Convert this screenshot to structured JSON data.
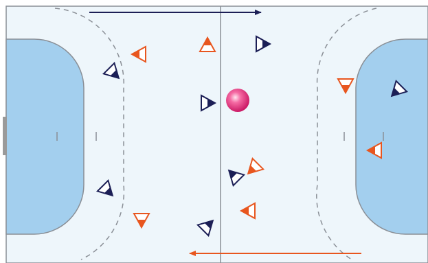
{
  "colors": {
    "court_background": "#eef6fb",
    "goal_area": "#a3cfee",
    "court_lines": "#8a8f96",
    "team_navy": "#1c1f56",
    "team_orange": "#e8561f",
    "ball": "#e6317a",
    "attack_arrow_navy": "#1c1f56",
    "attack_arrow_orange": "#e8561f"
  },
  "icons": {
    "ball": "handball-ball-icon",
    "player": "triangle-player-icon"
  },
  "players": [
    {
      "team": "navy",
      "heading": "right"
    },
    {
      "team": "navy",
      "heading": "down-right"
    },
    {
      "team": "navy",
      "heading": "right"
    },
    {
      "team": "navy",
      "heading": "down-left"
    },
    {
      "team": "navy",
      "heading": "up-left"
    },
    {
      "team": "navy",
      "heading": "down-right"
    },
    {
      "team": "navy",
      "heading": "up-right"
    },
    {
      "team": "orange",
      "heading": "left"
    },
    {
      "team": "orange",
      "heading": "up"
    },
    {
      "team": "orange",
      "heading": "down"
    },
    {
      "team": "orange",
      "heading": "left"
    },
    {
      "team": "orange",
      "heading": "down-left"
    },
    {
      "team": "orange",
      "heading": "left"
    },
    {
      "team": "orange",
      "heading": "down"
    }
  ]
}
